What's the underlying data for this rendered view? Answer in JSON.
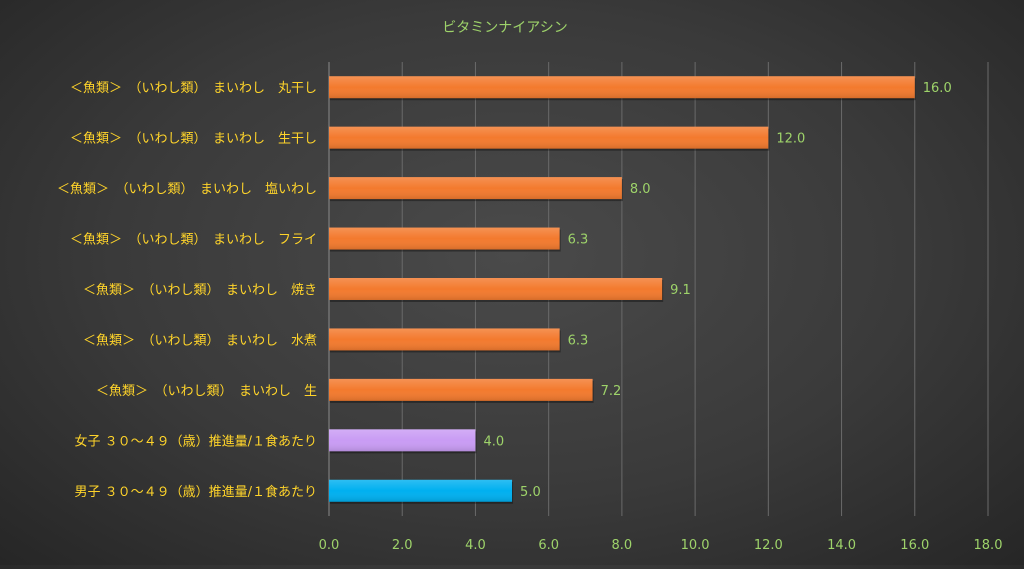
{
  "chart_data": {
    "type": "bar",
    "orientation": "horizontal",
    "title": "ビタミンナイアシン",
    "xlabel": "",
    "ylabel": "",
    "xlim": [
      0,
      18
    ],
    "x_ticks": [
      0,
      2,
      4,
      6,
      8,
      10,
      12,
      14,
      16,
      18
    ],
    "x_tick_labels": [
      "0.0",
      "2.0",
      "4.0",
      "6.0",
      "8.0",
      "10.0",
      "12.0",
      "14.0",
      "16.0",
      "18.0"
    ],
    "grid": "vertical",
    "legend": "none",
    "categories": [
      "＜魚類＞　（いわし類）　まいわし　丸干し",
      "＜魚類＞　（いわし類）　まいわし　生干し",
      "＜魚類＞　（いわし類）　まいわし　塩いわし",
      "＜魚類＞　（いわし類）　まいわし　フライ",
      "＜魚類＞　（いわし類）　まいわし　焼き",
      "＜魚類＞　（いわし類）　まいわし　水煮",
      "＜魚類＞　（いわし類）　まいわし　生",
      "女子 ３０～４９（歳）推進量/１食あたり",
      "男子 ３０～４９（歳）推進量/１食あたり"
    ],
    "values": [
      16.0,
      12.0,
      8.0,
      6.3,
      9.1,
      6.3,
      7.2,
      4.0,
      5.0
    ],
    "value_labels": [
      "16.0",
      "12.0",
      "8.0",
      "6.3",
      "9.1",
      "6.3",
      "7.2",
      "4.0",
      "5.0"
    ],
    "bar_colors": [
      "#f37a2e",
      "#f37a2e",
      "#f37a2e",
      "#f37a2e",
      "#f37a2e",
      "#f37a2e",
      "#f37a2e",
      "#c99cf4",
      "#00b0f0"
    ],
    "colors": {
      "title": "#9ed36a",
      "category_label": "#ffd42a",
      "tick_label": "#9ed36a",
      "data_label": "#9ed36a",
      "gridline": "#6a6a6a",
      "axis": "#8a8a8a"
    }
  }
}
